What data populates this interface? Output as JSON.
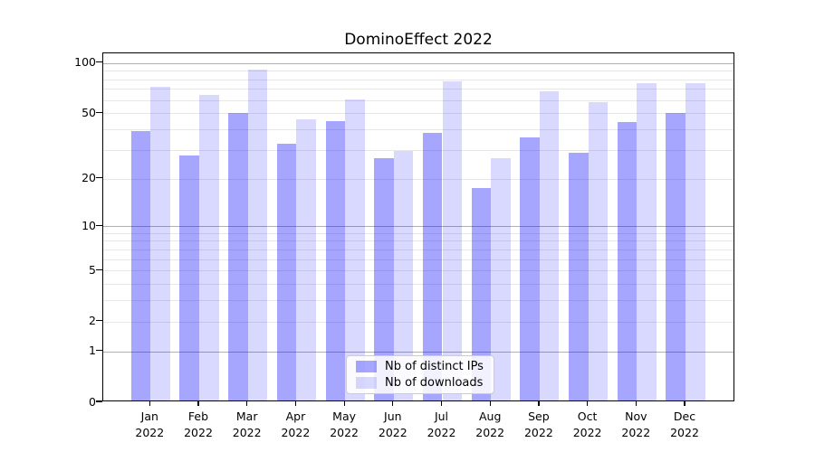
{
  "chart_data": {
    "type": "bar",
    "title": "DominoEffect 2022",
    "categories": [
      "Jan 2022",
      "Feb 2022",
      "Mar 2022",
      "Apr 2022",
      "May 2022",
      "Jun 2022",
      "Jul 2022",
      "Aug 2022",
      "Sep 2022",
      "Oct 2022",
      "Nov 2022",
      "Dec 2022"
    ],
    "series": [
      {
        "name": "Nb of distinct IPs",
        "color": "rgba(0,0,255,0.35)",
        "values": [
          38,
          27,
          49,
          32,
          44,
          26,
          37,
          17,
          35,
          28,
          43,
          49
        ]
      },
      {
        "name": "Nb of downloads",
        "color": "rgba(0,0,255,0.15)",
        "values": [
          70,
          63,
          89,
          45,
          59,
          29,
          76,
          26,
          66,
          57,
          74,
          74
        ]
      }
    ],
    "yscale": "symlog",
    "ylim": [
      0,
      113
    ],
    "yticks": [
      100,
      50,
      20,
      10,
      5,
      2,
      1,
      0
    ],
    "gridlines": {
      "major": [
        1,
        10,
        100
      ],
      "minor": [
        2,
        3,
        4,
        5,
        6,
        7,
        8,
        9,
        20,
        30,
        40,
        50,
        60,
        70,
        80,
        90
      ]
    },
    "grid": "on",
    "legend_position": "lower center inside",
    "xlabel": "",
    "ylabel": ""
  }
}
